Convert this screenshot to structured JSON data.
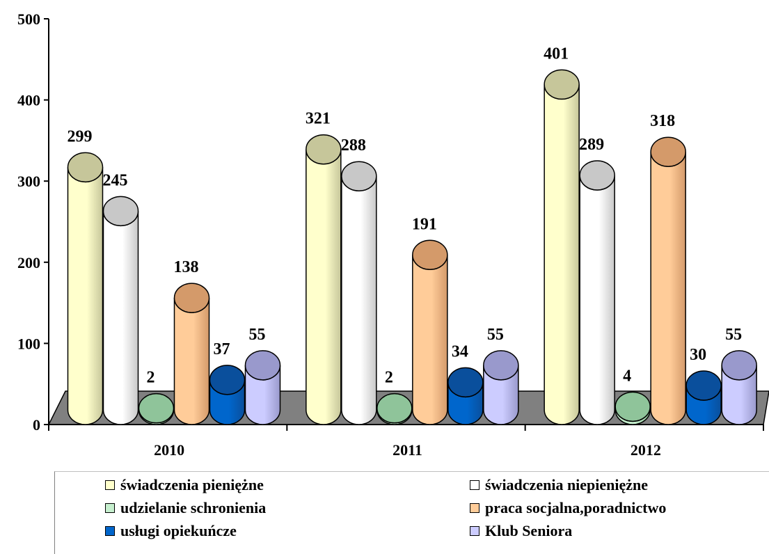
{
  "chart_data": {
    "type": "bar",
    "style": "3d-cylinder",
    "categories": [
      "2010",
      "2011",
      "2012"
    ],
    "series": [
      {
        "name": "świadczenia pieniężne",
        "values": [
          299,
          321,
          401
        ],
        "color": "#ffffcc",
        "top_color": "#c6c69a"
      },
      {
        "name": "świadczenia niepieniężne",
        "values": [
          245,
          288,
          289
        ],
        "color": "#ffffff",
        "top_color": "#c8c8c8"
      },
      {
        "name": "udzielanie schronienia",
        "values": [
          2,
          2,
          4
        ],
        "color": "#c6efce",
        "top_color": "#8fc49a"
      },
      {
        "name": "praca socjalna,poradnictwo",
        "values": [
          138,
          191,
          318
        ],
        "color": "#ffcc99",
        "top_color": "#d49a6a"
      },
      {
        "name": "usługi opiekuńcze",
        "values": [
          37,
          34,
          30
        ],
        "color": "#0066cc",
        "top_color": "#0a4f9c"
      },
      {
        "name": "Klub Seniora",
        "values": [
          55,
          55,
          55
        ],
        "color": "#ccccff",
        "top_color": "#9999cc"
      }
    ],
    "y_ticks": [
      "0",
      "100",
      "200",
      "300",
      "400",
      "500"
    ],
    "ylim": [
      0,
      500
    ],
    "legend_position": "bottom",
    "floor_color": "#808080"
  }
}
